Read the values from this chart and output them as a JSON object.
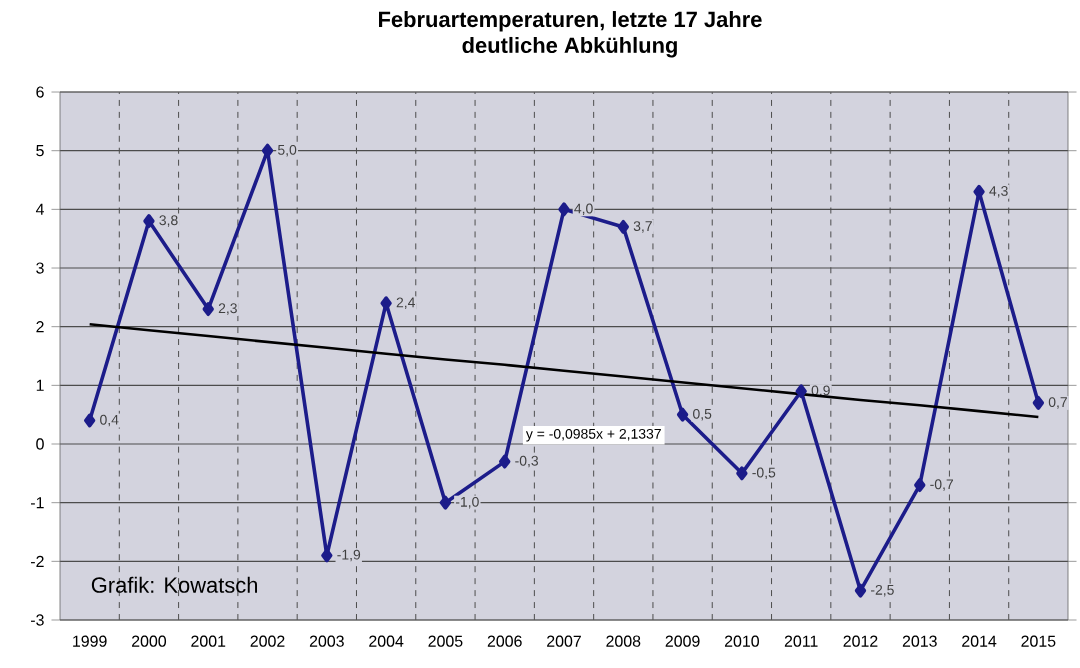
{
  "chart_data": {
    "type": "line",
    "title": "Februartemperaturen, letzte 17 Jahre",
    "subtitle": "deutliche Abkühlung",
    "categories": [
      "1999",
      "2000",
      "2001",
      "2002",
      "2003",
      "2004",
      "2005",
      "2006",
      "2007",
      "2008",
      "2009",
      "2010",
      "2011",
      "2012",
      "2013",
      "2014",
      "2015"
    ],
    "series": [
      {
        "color": "#1c1c8a",
        "marker": "diamond",
        "values": [
          0.4,
          3.8,
          2.3,
          5.0,
          -1.9,
          2.4,
          -1.0,
          -0.3,
          4.0,
          3.7,
          0.5,
          -0.5,
          0.9,
          -2.5,
          -0.7,
          4.3,
          0.7
        ],
        "value_labels": [
          "0,4",
          "3,8",
          "2,3",
          "5,0",
          "-1,9",
          "2,4",
          "-1,0",
          "-0,3",
          "4,0",
          "3,7",
          "0,5",
          "-0,5",
          "0,9",
          "-2,5",
          "-0,7",
          "4,3",
          "0,7"
        ]
      },
      {
        "color": "#000000",
        "marker": "none",
        "values": [
          2.04,
          1.94,
          1.84,
          1.74,
          1.64,
          1.54,
          1.44,
          1.35,
          1.25,
          1.15,
          1.05,
          0.95,
          0.85,
          0.75,
          0.66,
          0.56,
          0.46
        ]
      }
    ],
    "annotations": [
      "y = -0,0985x + 2,1337",
      "Grafik: Kowatsch"
    ],
    "ylim": [
      -3,
      6
    ],
    "yticks": [
      -3,
      -2,
      -1,
      0,
      1,
      2,
      3,
      4,
      5,
      6
    ],
    "grid": true
  }
}
